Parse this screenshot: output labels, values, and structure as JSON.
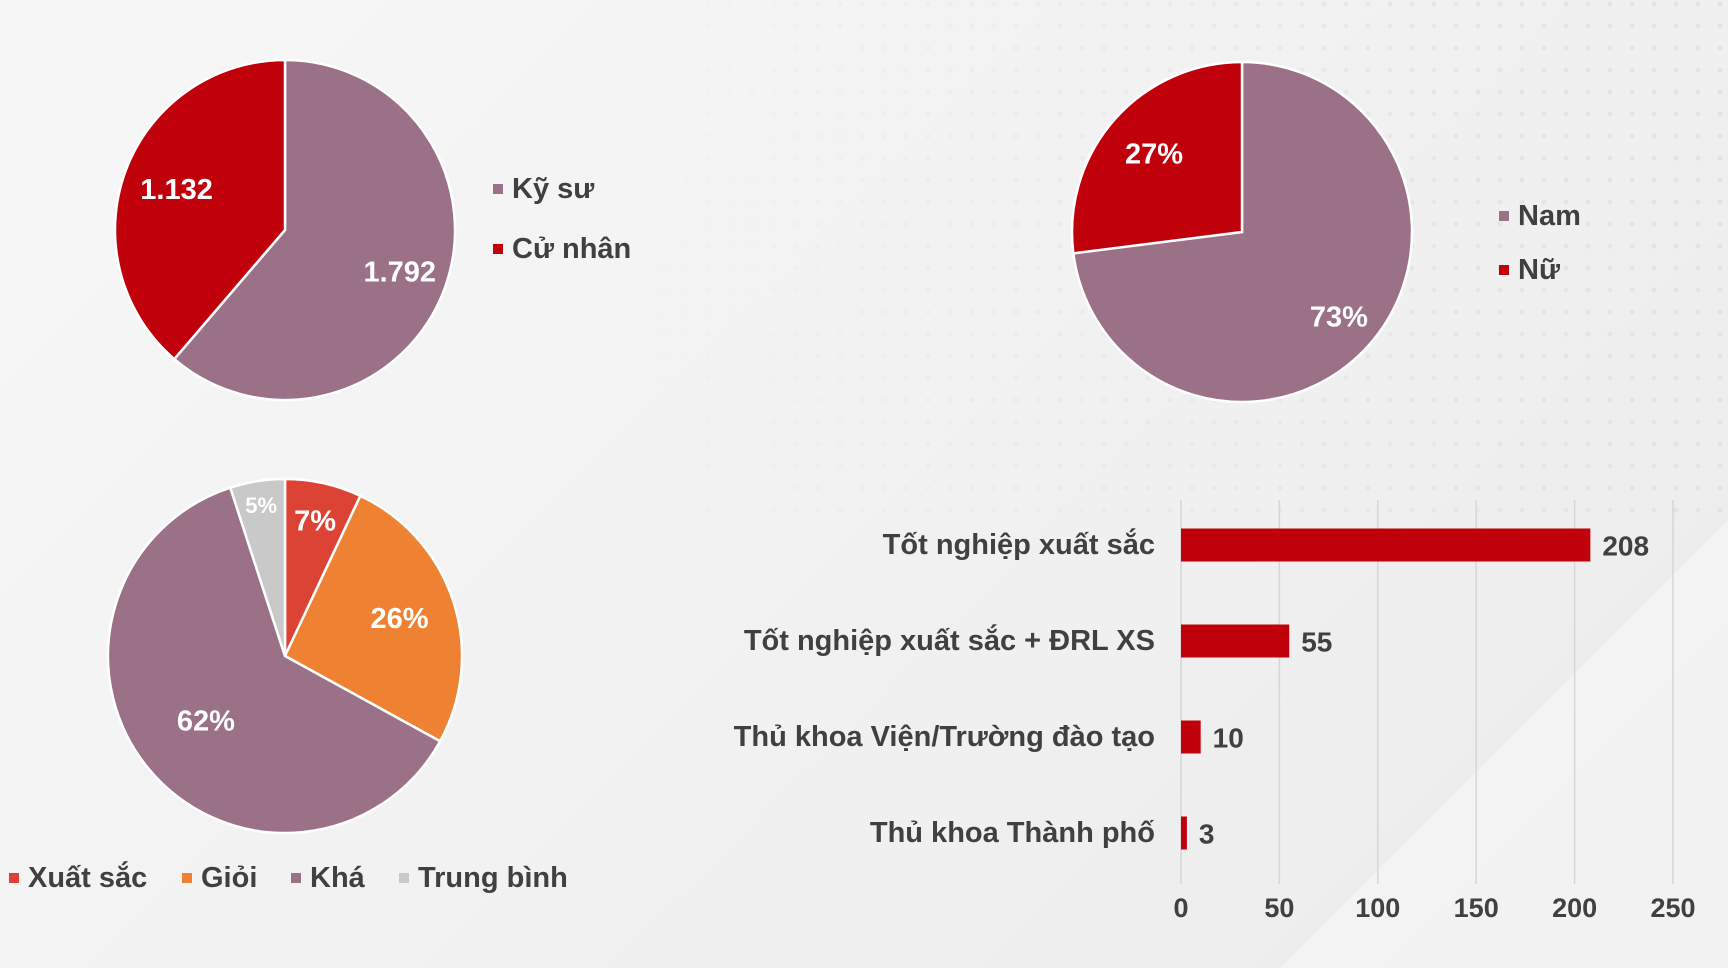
{
  "colors": {
    "mauve": "#9b7188",
    "red": "#c0000b",
    "orange": "#ee8232",
    "light_red": "#dc4335",
    "gray": "#c9c9c9",
    "text": "#404040"
  },
  "chart_data": [
    {
      "type": "pie",
      "series": [
        {
          "label": "Kỹ sư",
          "value": 1792,
          "display": "1.792",
          "color": "#9b7188"
        },
        {
          "label": "Cử nhân",
          "value": 1132,
          "display": "1.132",
          "color": "#c0000b"
        }
      ],
      "legend": [
        "Kỹ sư",
        "Cử nhân"
      ],
      "legend_position": "right"
    },
    {
      "type": "pie",
      "series": [
        {
          "label": "Nam",
          "value": 73,
          "display": "73%",
          "color": "#9b7188"
        },
        {
          "label": "Nữ",
          "value": 27,
          "display": "27%",
          "color": "#c0000b"
        }
      ],
      "legend": [
        "Nam",
        "Nữ"
      ],
      "legend_position": "right"
    },
    {
      "type": "pie",
      "series": [
        {
          "label": "Xuất sắc",
          "value": 7,
          "display": "7%",
          "color": "#dc4335"
        },
        {
          "label": "Giỏi",
          "value": 26,
          "display": "26%",
          "color": "#ee8232"
        },
        {
          "label": "Khá",
          "value": 62,
          "display": "62%",
          "color": "#9b7188"
        },
        {
          "label": "Trung bình",
          "value": 5,
          "display": "5%",
          "color": "#c9c9c9"
        }
      ],
      "legend": [
        "Xuất sắc",
        "Giỏi",
        "Khá",
        "Trung bình"
      ],
      "legend_position": "bottom"
    },
    {
      "type": "bar",
      "orientation": "horizontal",
      "categories": [
        "Tốt nghiệp xuất sắc",
        "Tốt nghiệp xuất sắc + ĐRL XS",
        "Thủ khoa Viện/Trường đào tạo",
        "Thủ khoa Thành phố"
      ],
      "values": [
        208,
        55,
        10,
        3
      ],
      "xlim": [
        0,
        250
      ],
      "xticks": [
        0,
        50,
        100,
        150,
        200,
        250
      ],
      "grid": true,
      "color": "#c0000b"
    }
  ]
}
